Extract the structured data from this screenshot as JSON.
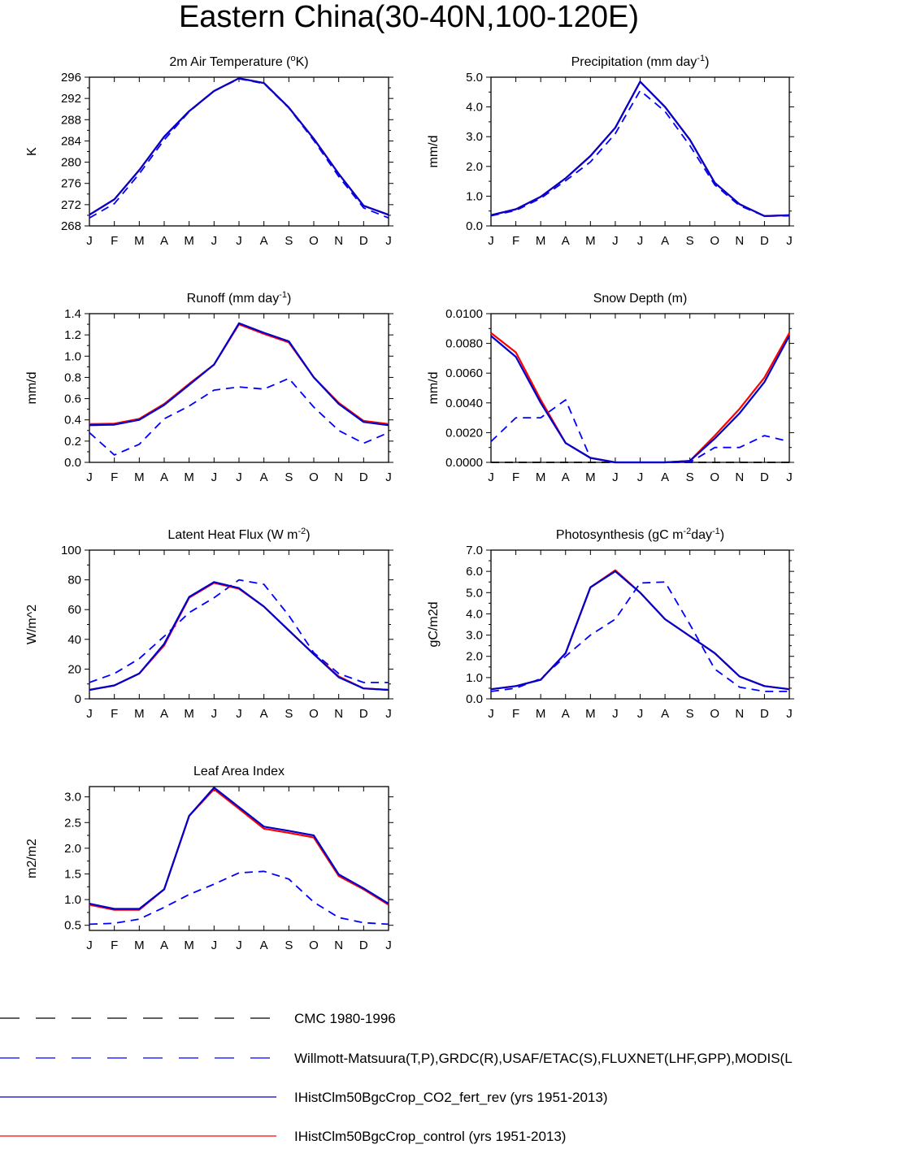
{
  "title": "Eastern China(30-40N,100-120E)",
  "colors": {
    "cmc": "#000000",
    "obs": "#0000ff",
    "co2": "#0000cc",
    "control": "#ff0000"
  },
  "legend": [
    {
      "label": "CMC 1980-1996",
      "color": "#000000",
      "dash": true
    },
    {
      "label": "Willmott-Matsuura(T,P),GRDC(R),USAF/ETAC(S),FLUXNET(LHF,GPP),MODIS(L",
      "color": "#0000ff",
      "dash": true
    },
    {
      "label": "IHistClm50BgcCrop_CO2_fert_rev (yrs 1951-2013)",
      "color": "#0000cc",
      "dash": false
    },
    {
      "label": "IHistClm50BgcCrop_control (yrs 1951-2013)",
      "color": "#ff0000",
      "dash": false
    }
  ],
  "chart_data": [
    {
      "type": "line",
      "title": "2m Air Temperature (oK)",
      "title_main": "2m Air Temperature (",
      "title_sup": "o",
      "title_end": "K)",
      "ylabel": "K",
      "categories": [
        "J",
        "F",
        "M",
        "A",
        "M",
        "J",
        "J",
        "A",
        "S",
        "O",
        "N",
        "D",
        "J"
      ],
      "ylim": [
        268,
        296
      ],
      "yticks": [
        "268",
        "272",
        "276",
        "280",
        "284",
        "288",
        "292",
        "296"
      ],
      "grid": false,
      "series": [
        {
          "name": "Willmott-Matsuura(T,P),GRDC(R),USAF/ETAC(S),FLUXNET(LHF,GPP),MODIS(L",
          "style": "dash",
          "color": "#0000ff",
          "values": [
            269.5,
            272.2,
            277.8,
            284.2,
            289.5,
            293.4,
            295.7,
            294.8,
            290.2,
            284.1,
            277.3,
            271.4,
            269.5
          ]
        },
        {
          "name": "IHistClm50BgcCrop_control (yrs 1951-2013)",
          "style": "solid",
          "color": "#ff0000",
          "values": [
            270.1,
            273.0,
            278.5,
            284.8,
            289.6,
            293.4,
            295.8,
            294.9,
            290.3,
            284.4,
            277.8,
            271.8,
            270.1
          ]
        },
        {
          "name": "IHistClm50BgcCrop_CO2_fert_rev (yrs 1951-2013)",
          "style": "solid",
          "color": "#0000cc",
          "values": [
            270.1,
            273.0,
            278.5,
            284.8,
            289.6,
            293.4,
            295.8,
            294.9,
            290.3,
            284.4,
            277.8,
            271.8,
            270.1
          ]
        }
      ]
    },
    {
      "type": "line",
      "title": "Precipitation (mm day-1)",
      "title_main": "Precipitation (mm day",
      "title_sup": "-1",
      "title_end": ")",
      "ylabel": "mm/d",
      "categories": [
        "J",
        "F",
        "M",
        "A",
        "M",
        "J",
        "J",
        "A",
        "S",
        "O",
        "N",
        "D",
        "J"
      ],
      "ylim": [
        0,
        5
      ],
      "yticks": [
        "0.0",
        "1.0",
        "2.0",
        "3.0",
        "4.0",
        "5.0"
      ],
      "grid": false,
      "series": [
        {
          "name": "Willmott-Matsuura(T,P),GRDC(R),USAF/ETAC(S),FLUXNET(LHF,GPP),MODIS(L",
          "style": "dash",
          "color": "#0000ff",
          "values": [
            0.34,
            0.52,
            0.93,
            1.52,
            2.15,
            3.1,
            4.55,
            3.85,
            2.7,
            1.38,
            0.68,
            0.33,
            0.34
          ]
        },
        {
          "name": "IHistClm50BgcCrop_control (yrs 1951-2013)",
          "style": "solid",
          "color": "#ff0000",
          "values": [
            0.36,
            0.56,
            0.98,
            1.6,
            2.35,
            3.3,
            4.85,
            4.0,
            2.9,
            1.45,
            0.73,
            0.33,
            0.36
          ]
        },
        {
          "name": "IHistClm50BgcCrop_CO2_fert_rev (yrs 1951-2013)",
          "style": "solid",
          "color": "#0000cc",
          "values": [
            0.36,
            0.56,
            0.98,
            1.6,
            2.35,
            3.3,
            4.85,
            4.0,
            2.9,
            1.45,
            0.73,
            0.33,
            0.36
          ]
        }
      ]
    },
    {
      "type": "line",
      "title": "Runoff (mm day-1)",
      "title_main": "Runoff (mm day",
      "title_sup": "-1",
      "title_end": ")",
      "ylabel": "mm/d",
      "categories": [
        "J",
        "F",
        "M",
        "A",
        "M",
        "J",
        "J",
        "A",
        "S",
        "O",
        "N",
        "D",
        "J"
      ],
      "ylim": [
        0,
        1.4
      ],
      "yticks": [
        "0.0",
        "0.2",
        "0.4",
        "0.6",
        "0.8",
        "1.0",
        "1.2",
        "1.4"
      ],
      "grid": false,
      "series": [
        {
          "name": "Willmott-Matsuura(T,P),GRDC(R),USAF/ETAC(S),FLUXNET(LHF,GPP),MODIS(L",
          "style": "dash",
          "color": "#0000ff",
          "values": [
            0.28,
            0.07,
            0.17,
            0.41,
            0.53,
            0.68,
            0.71,
            0.69,
            0.79,
            0.52,
            0.3,
            0.18,
            0.28
          ]
        },
        {
          "name": "IHistClm50BgcCrop_control (yrs 1951-2013)",
          "style": "solid",
          "color": "#ff0000",
          "values": [
            0.36,
            0.365,
            0.41,
            0.55,
            0.74,
            0.92,
            1.3,
            1.21,
            1.13,
            0.8,
            0.56,
            0.39,
            0.36
          ]
        },
        {
          "name": "IHistClm50BgcCrop_CO2_fert_rev (yrs 1951-2013)",
          "style": "solid",
          "color": "#0000cc",
          "values": [
            0.35,
            0.355,
            0.4,
            0.54,
            0.73,
            0.92,
            1.31,
            1.22,
            1.14,
            0.8,
            0.55,
            0.38,
            0.35
          ]
        }
      ]
    },
    {
      "type": "line",
      "title": "Snow Depth (m)",
      "title_main": "Snow Depth (m)",
      "title_sup": "",
      "title_end": "",
      "ylabel": "mm/d",
      "categories": [
        "J",
        "F",
        "M",
        "A",
        "M",
        "J",
        "J",
        "A",
        "S",
        "O",
        "N",
        "D",
        "J"
      ],
      "ylim": [
        0,
        0.01
      ],
      "yticks": [
        "0.0000",
        "0.0020",
        "0.0040",
        "0.0060",
        "0.0080",
        "0.0100"
      ],
      "grid": false,
      "series": [
        {
          "name": "CMC 1980-1996",
          "style": "dash",
          "color": "#000000",
          "values": [
            0,
            0,
            0,
            0,
            0,
            0,
            0,
            0,
            0,
            0,
            0,
            0,
            0
          ]
        },
        {
          "name": "Willmott-Matsuura(T,P),GRDC(R),USAF/ETAC(S),FLUXNET(LHF,GPP),MODIS(L",
          "style": "dash",
          "color": "#0000ff",
          "values": [
            0.0014,
            0.003,
            0.003,
            0.0042,
            0.0003,
            0.0,
            0.0,
            0.0,
            0.0,
            0.001,
            0.001,
            0.0018,
            0.0014
          ]
        },
        {
          "name": "IHistClm50BgcCrop_control (yrs 1951-2013)",
          "style": "solid",
          "color": "#ff0000",
          "values": [
            0.0087,
            0.0074,
            0.0042,
            0.0013,
            0.0003,
            0.0,
            0.0,
            0.0,
            0.0001,
            0.0018,
            0.0036,
            0.0057,
            0.0087
          ]
        },
        {
          "name": "IHistClm50BgcCrop_CO2_fert_rev (yrs 1951-2013)",
          "style": "solid",
          "color": "#0000cc",
          "values": [
            0.0085,
            0.0071,
            0.004,
            0.0013,
            0.0003,
            0.0,
            0.0,
            0.0,
            0.0001,
            0.0016,
            0.0033,
            0.0054,
            0.0085
          ]
        }
      ]
    },
    {
      "type": "line",
      "title": "Latent Heat Flux (W m-2)",
      "title_main": "Latent Heat Flux (W m",
      "title_sup": "-2",
      "title_end": ")",
      "ylabel": "W/m^2",
      "categories": [
        "J",
        "F",
        "M",
        "A",
        "M",
        "J",
        "J",
        "A",
        "S",
        "O",
        "N",
        "D",
        "J"
      ],
      "ylim": [
        0,
        100
      ],
      "yticks": [
        "0",
        "20",
        "40",
        "60",
        "80",
        "100"
      ],
      "grid": false,
      "series": [
        {
          "name": "Willmott-Matsuura(T,P),GRDC(R),USAF/ETAC(S),FLUXNET(LHF,GPP),MODIS(L",
          "style": "dash",
          "color": "#0000ff",
          "values": [
            11,
            17,
            27,
            42,
            58,
            68,
            80,
            77,
            56,
            31,
            17,
            11,
            11
          ]
        },
        {
          "name": "IHistClm50BgcCrop_control (yrs 1951-2013)",
          "style": "solid",
          "color": "#ff0000",
          "values": [
            6,
            9,
            17,
            36,
            68,
            78,
            74,
            62,
            46,
            30,
            15,
            7,
            6
          ]
        },
        {
          "name": "IHistClm50BgcCrop_CO2_fert_rev (yrs 1951-2013)",
          "style": "solid",
          "color": "#0000cc",
          "values": [
            6,
            9,
            17,
            37,
            68.5,
            78.5,
            74.5,
            62,
            46,
            30,
            14.5,
            7,
            6
          ]
        }
      ]
    },
    {
      "type": "line",
      "title": "Photosynthesis (gC m-2day-1)",
      "title_main": "Photosynthesis (gC m",
      "title_sup": "-2",
      "title_end": "day",
      "title_sup2": "-1",
      "title_end2": ")",
      "ylabel": "gC/m2d",
      "categories": [
        "J",
        "F",
        "M",
        "A",
        "M",
        "J",
        "J",
        "A",
        "S",
        "O",
        "N",
        "D",
        "J"
      ],
      "ylim": [
        0,
        7
      ],
      "yticks": [
        "0.0",
        "1.0",
        "2.0",
        "3.0",
        "4.0",
        "5.0",
        "6.0",
        "7.0"
      ],
      "grid": false,
      "series": [
        {
          "name": "Willmott-Matsuura(T,P),GRDC(R),USAF/ETAC(S),FLUXNET(LHF,GPP),MODIS(L",
          "style": "dash",
          "color": "#0000ff",
          "values": [
            0.35,
            0.5,
            0.95,
            2.0,
            3.0,
            3.75,
            5.45,
            5.5,
            3.5,
            1.4,
            0.55,
            0.35,
            0.35
          ]
        },
        {
          "name": "IHistClm50BgcCrop_control (yrs 1951-2013)",
          "style": "solid",
          "color": "#ff0000",
          "values": [
            0.45,
            0.6,
            0.9,
            2.15,
            5.25,
            6.05,
            5.0,
            3.75,
            2.95,
            2.15,
            1.05,
            0.6,
            0.45
          ]
        },
        {
          "name": "IHistClm50BgcCrop_CO2_fert_rev (yrs 1951-2013)",
          "style": "solid",
          "color": "#0000cc",
          "values": [
            0.45,
            0.6,
            0.9,
            2.15,
            5.25,
            6.0,
            5.0,
            3.75,
            2.95,
            2.15,
            1.05,
            0.6,
            0.45
          ]
        }
      ]
    },
    {
      "type": "line",
      "title": "Leaf Area Index",
      "title_main": "Leaf Area Index",
      "title_sup": "",
      "title_end": "",
      "ylabel": "m2/m2",
      "categories": [
        "J",
        "F",
        "M",
        "A",
        "M",
        "J",
        "J",
        "A",
        "S",
        "O",
        "N",
        "D",
        "J"
      ],
      "ylim": [
        0.4,
        3.2
      ],
      "yticks": [
        "0.5",
        "1.0",
        "1.5",
        "2.0",
        "2.5",
        "3.0"
      ],
      "ytick_values": [
        0.5,
        1.0,
        1.5,
        2.0,
        2.5,
        3.0
      ],
      "grid": false,
      "series": [
        {
          "name": "Willmott-Matsuura(T,P),GRDC(R),USAF/ETAC(S),FLUXNET(LHF,GPP),MODIS(L",
          "style": "dash",
          "color": "#0000ff",
          "values": [
            0.52,
            0.54,
            0.62,
            0.85,
            1.1,
            1.3,
            1.52,
            1.55,
            1.4,
            0.95,
            0.65,
            0.55,
            0.52
          ]
        },
        {
          "name": "IHistClm50BgcCrop_control (yrs 1951-2013)",
          "style": "solid",
          "color": "#ff0000",
          "values": [
            0.9,
            0.8,
            0.8,
            1.2,
            2.63,
            3.15,
            2.77,
            2.38,
            2.3,
            2.21,
            1.46,
            1.2,
            0.9
          ]
        },
        {
          "name": "IHistClm50BgcCrop_CO2_fert_rev (yrs 1951-2013)",
          "style": "solid",
          "color": "#0000cc",
          "values": [
            0.92,
            0.82,
            0.82,
            1.2,
            2.63,
            3.18,
            2.8,
            2.42,
            2.34,
            2.25,
            1.49,
            1.22,
            0.92
          ]
        }
      ]
    }
  ]
}
